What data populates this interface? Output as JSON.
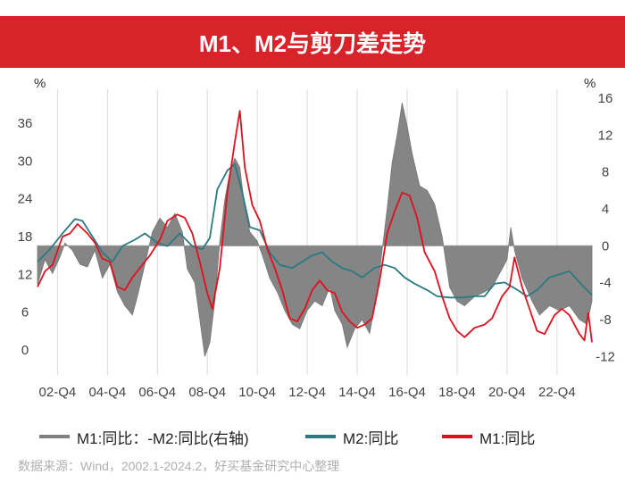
{
  "title": "M1、M2与剪刀差走势",
  "source": "数据来源：Wind，2002.1-2024.2，好买基金研究中心整理",
  "colors": {
    "title_bg": "#d8232a",
    "gap": "#7f7f7f",
    "m2": "#2a7a82",
    "m1": "#e0101e",
    "grid": "#d9d9d9"
  },
  "chart_data": {
    "type": "line",
    "left_unit": "%",
    "right_unit": "%",
    "left_axis": {
      "ticks": [
        0,
        6,
        12,
        18,
        24,
        30,
        36
      ],
      "range": [
        -4,
        40
      ]
    },
    "right_axis": {
      "ticks": [
        -12,
        -8,
        -4,
        0,
        4,
        8,
        12,
        16
      ],
      "range": [
        -14,
        16
      ]
    },
    "x_range": [
      2002.0,
      2024.2
    ],
    "x_ticks": [
      {
        "label": "02-Q4",
        "t": 2002.8
      },
      {
        "label": "04-Q4",
        "t": 2004.8
      },
      {
        "label": "06-Q4",
        "t": 2006.8
      },
      {
        "label": "08-Q4",
        "t": 2008.8
      },
      {
        "label": "10-Q4",
        "t": 2010.8
      },
      {
        "label": "12-Q4",
        "t": 2012.8
      },
      {
        "label": "14-Q4",
        "t": 2014.8
      },
      {
        "label": "16-Q4",
        "t": 2016.8
      },
      {
        "label": "18-Q4",
        "t": 2018.8
      },
      {
        "label": "20-Q4",
        "t": 2020.8
      },
      {
        "label": "22-Q4",
        "t": 2022.8
      }
    ],
    "legend": [
      "M1:同比：-M2:同比(右轴)",
      "M2:同比",
      "M1:同比"
    ],
    "series": [
      {
        "name": "M1:同比：-M2:同比(右轴)",
        "axis": "right",
        "style": "area",
        "points": [
          [
            2002.0,
            -4.2
          ],
          [
            2002.3,
            -1.5
          ],
          [
            2002.6,
            -3.0
          ],
          [
            2002.9,
            -1.2
          ],
          [
            2003.1,
            0.3
          ],
          [
            2003.4,
            -0.5
          ],
          [
            2003.7,
            -2.0
          ],
          [
            2004.0,
            -2.3
          ],
          [
            2004.3,
            -0.5
          ],
          [
            2004.6,
            -3.5
          ],
          [
            2004.9,
            -2.0
          ],
          [
            2005.2,
            -5.0
          ],
          [
            2005.5,
            -6.5
          ],
          [
            2005.8,
            -7.5
          ],
          [
            2006.0,
            -5.5
          ],
          [
            2006.3,
            -2.0
          ],
          [
            2006.6,
            1.5
          ],
          [
            2006.9,
            3.0
          ],
          [
            2007.2,
            2.0
          ],
          [
            2007.5,
            3.5
          ],
          [
            2007.8,
            1.5
          ],
          [
            2008.0,
            -2.5
          ],
          [
            2008.3,
            -4.0
          ],
          [
            2008.5,
            -8.0
          ],
          [
            2008.7,
            -12.0
          ],
          [
            2008.9,
            -10.5
          ],
          [
            2009.1,
            -6.0
          ],
          [
            2009.3,
            0.5
          ],
          [
            2009.5,
            5.0
          ],
          [
            2009.7,
            8.0
          ],
          [
            2009.9,
            9.5
          ],
          [
            2010.1,
            8.5
          ],
          [
            2010.3,
            4.0
          ],
          [
            2010.5,
            1.5
          ],
          [
            2010.8,
            0.5
          ],
          [
            2011.0,
            -1.0
          ],
          [
            2011.3,
            -3.5
          ],
          [
            2011.6,
            -5.0
          ],
          [
            2011.9,
            -7.0
          ],
          [
            2012.2,
            -8.5
          ],
          [
            2012.5,
            -9.0
          ],
          [
            2012.8,
            -7.0
          ],
          [
            2013.1,
            -6.0
          ],
          [
            2013.4,
            -6.5
          ],
          [
            2013.7,
            -4.5
          ],
          [
            2013.9,
            -7.0
          ],
          [
            2014.2,
            -8.5
          ],
          [
            2014.4,
            -11.0
          ],
          [
            2014.7,
            -9.0
          ],
          [
            2015.0,
            -8.0
          ],
          [
            2015.3,
            -9.5
          ],
          [
            2015.6,
            -5.0
          ],
          [
            2015.8,
            -0.5
          ],
          [
            2016.0,
            4.0
          ],
          [
            2016.2,
            9.0
          ],
          [
            2016.4,
            12.0
          ],
          [
            2016.6,
            15.5
          ],
          [
            2016.8,
            13.0
          ],
          [
            2017.0,
            10.0
          ],
          [
            2017.3,
            6.5
          ],
          [
            2017.6,
            6.0
          ],
          [
            2017.9,
            4.5
          ],
          [
            2018.2,
            1.0
          ],
          [
            2018.5,
            -4.5
          ],
          [
            2018.8,
            -6.0
          ],
          [
            2019.1,
            -6.5
          ],
          [
            2019.5,
            -5.5
          ],
          [
            2019.9,
            -5.0
          ],
          [
            2020.2,
            -4.5
          ],
          [
            2020.5,
            -3.0
          ],
          [
            2020.8,
            -1.5
          ],
          [
            2020.95,
            2.0
          ],
          [
            2021.1,
            -0.5
          ],
          [
            2021.4,
            -3.5
          ],
          [
            2021.8,
            -6.0
          ],
          [
            2022.1,
            -7.5
          ],
          [
            2022.5,
            -6.5
          ],
          [
            2022.9,
            -7.0
          ],
          [
            2023.3,
            -6.5
          ],
          [
            2023.7,
            -8.0
          ],
          [
            2024.0,
            -8.5
          ],
          [
            2024.2,
            -6.0
          ]
        ]
      },
      {
        "name": "M2:同比",
        "axis": "left",
        "points": [
          [
            2002.0,
            14.0
          ],
          [
            2002.5,
            16.0
          ],
          [
            2003.0,
            18.5
          ],
          [
            2003.5,
            20.8
          ],
          [
            2003.8,
            20.5
          ],
          [
            2004.2,
            18.0
          ],
          [
            2004.6,
            15.5
          ],
          [
            2005.0,
            14.0
          ],
          [
            2005.4,
            16.5
          ],
          [
            2005.9,
            17.5
          ],
          [
            2006.3,
            18.5
          ],
          [
            2006.8,
            17.0
          ],
          [
            2007.2,
            16.5
          ],
          [
            2007.7,
            18.5
          ],
          [
            2008.2,
            16.5
          ],
          [
            2008.6,
            16.0
          ],
          [
            2008.9,
            17.8
          ],
          [
            2009.2,
            25.5
          ],
          [
            2009.6,
            28.5
          ],
          [
            2009.9,
            29.5
          ],
          [
            2010.2,
            25.0
          ],
          [
            2010.5,
            19.5
          ],
          [
            2010.9,
            19.0
          ],
          [
            2011.3,
            15.5
          ],
          [
            2011.7,
            13.5
          ],
          [
            2012.2,
            13.0
          ],
          [
            2012.6,
            14.0
          ],
          [
            2013.0,
            15.0
          ],
          [
            2013.4,
            15.5
          ],
          [
            2013.8,
            14.0
          ],
          [
            2014.2,
            13.0
          ],
          [
            2014.6,
            12.5
          ],
          [
            2015.0,
            11.5
          ],
          [
            2015.5,
            13.0
          ],
          [
            2015.9,
            13.5
          ],
          [
            2016.3,
            13.0
          ],
          [
            2016.7,
            11.5
          ],
          [
            2017.1,
            10.5
          ],
          [
            2017.6,
            9.5
          ],
          [
            2018.0,
            8.5
          ],
          [
            2018.5,
            8.3
          ],
          [
            2019.0,
            8.3
          ],
          [
            2019.5,
            8.5
          ],
          [
            2019.9,
            8.5
          ],
          [
            2020.3,
            10.5
          ],
          [
            2020.7,
            10.7
          ],
          [
            2021.1,
            9.8
          ],
          [
            2021.6,
            8.5
          ],
          [
            2022.0,
            9.5
          ],
          [
            2022.5,
            11.5
          ],
          [
            2022.9,
            12.0
          ],
          [
            2023.3,
            12.5
          ],
          [
            2023.8,
            10.3
          ],
          [
            2024.2,
            8.7
          ]
        ]
      },
      {
        "name": "M1:同比",
        "axis": "left",
        "points": [
          [
            2002.0,
            10.0
          ],
          [
            2002.3,
            12.5
          ],
          [
            2002.6,
            13.5
          ],
          [
            2003.0,
            18.0
          ],
          [
            2003.3,
            18.5
          ],
          [
            2003.6,
            20.0
          ],
          [
            2004.0,
            18.5
          ],
          [
            2004.3,
            17.0
          ],
          [
            2004.6,
            14.5
          ],
          [
            2004.9,
            14.0
          ],
          [
            2005.2,
            10.0
          ],
          [
            2005.5,
            9.5
          ],
          [
            2005.8,
            11.5
          ],
          [
            2006.1,
            13.0
          ],
          [
            2006.5,
            15.0
          ],
          [
            2006.9,
            17.5
          ],
          [
            2007.2,
            20.5
          ],
          [
            2007.6,
            21.5
          ],
          [
            2007.9,
            21.0
          ],
          [
            2008.2,
            18.5
          ],
          [
            2008.5,
            14.0
          ],
          [
            2008.8,
            9.0
          ],
          [
            2009.0,
            6.5
          ],
          [
            2009.3,
            13.0
          ],
          [
            2009.6,
            25.0
          ],
          [
            2009.9,
            33.0
          ],
          [
            2010.1,
            38.0
          ],
          [
            2010.3,
            29.0
          ],
          [
            2010.6,
            23.0
          ],
          [
            2010.9,
            20.5
          ],
          [
            2011.2,
            16.0
          ],
          [
            2011.5,
            13.0
          ],
          [
            2011.8,
            9.5
          ],
          [
            2012.1,
            5.0
          ],
          [
            2012.4,
            4.5
          ],
          [
            2012.7,
            6.5
          ],
          [
            2013.0,
            9.5
          ],
          [
            2013.3,
            11.0
          ],
          [
            2013.6,
            9.5
          ],
          [
            2013.9,
            9.0
          ],
          [
            2014.2,
            6.0
          ],
          [
            2014.5,
            4.5
          ],
          [
            2014.8,
            3.5
          ],
          [
            2015.1,
            4.0
          ],
          [
            2015.4,
            5.0
          ],
          [
            2015.7,
            11.0
          ],
          [
            2016.0,
            18.5
          ],
          [
            2016.3,
            22.0
          ],
          [
            2016.6,
            25.0
          ],
          [
            2016.9,
            24.5
          ],
          [
            2017.2,
            21.0
          ],
          [
            2017.5,
            15.5
          ],
          [
            2017.9,
            12.5
          ],
          [
            2018.2,
            8.5
          ],
          [
            2018.5,
            5.0
          ],
          [
            2018.8,
            3.0
          ],
          [
            2019.1,
            2.0
          ],
          [
            2019.5,
            3.5
          ],
          [
            2019.9,
            4.0
          ],
          [
            2020.2,
            5.0
          ],
          [
            2020.6,
            8.5
          ],
          [
            2020.9,
            10.0
          ],
          [
            2021.1,
            14.7
          ],
          [
            2021.4,
            10.0
          ],
          [
            2021.7,
            6.5
          ],
          [
            2022.0,
            3.0
          ],
          [
            2022.3,
            2.5
          ],
          [
            2022.7,
            5.5
          ],
          [
            2023.0,
            6.5
          ],
          [
            2023.3,
            5.5
          ],
          [
            2023.7,
            2.5
          ],
          [
            2023.9,
            1.5
          ],
          [
            2024.05,
            5.9
          ],
          [
            2024.2,
            1.2
          ]
        ]
      }
    ]
  }
}
